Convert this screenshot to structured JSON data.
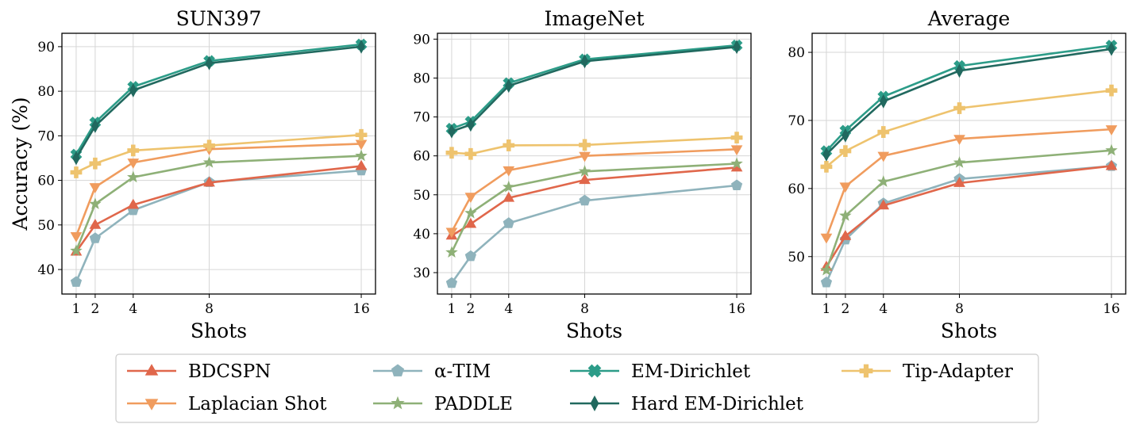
{
  "chart_data": [
    {
      "type": "line",
      "title": "SUN397",
      "xlabel": "Shots",
      "ylabel": "Accuracy (%)",
      "x": [
        1,
        2,
        4,
        8,
        16
      ],
      "xticks": [
        1,
        2,
        4,
        8,
        16
      ],
      "yticks": [
        40,
        50,
        60,
        70,
        80,
        90
      ],
      "ylim": [
        34.5,
        93
      ],
      "grid": true,
      "series": [
        {
          "name": "BDCSPN",
          "values": [
            44.0,
            50.0,
            54.5,
            59.5,
            63.2
          ]
        },
        {
          "name": "Laplacian Shot",
          "values": [
            47.5,
            58.5,
            64.0,
            67.0,
            68.2
          ]
        },
        {
          "name": "α-TIM",
          "values": [
            37.2,
            47.0,
            53.3,
            59.6,
            62.2
          ]
        },
        {
          "name": "PADDLE",
          "values": [
            44.2,
            54.7,
            60.7,
            64.0,
            65.5
          ]
        },
        {
          "name": "EM-Dirichlet",
          "values": [
            65.8,
            73.0,
            81.0,
            86.8,
            90.5
          ]
        },
        {
          "name": "Hard EM-Dirichlet",
          "values": [
            65.0,
            72.2,
            80.2,
            86.3,
            90.0
          ]
        },
        {
          "name": "Tip-Adapter",
          "values": [
            61.8,
            63.8,
            66.7,
            67.8,
            70.2
          ]
        }
      ]
    },
    {
      "type": "line",
      "title": "ImageNet",
      "xlabel": "Shots",
      "ylabel": "",
      "x": [
        1,
        2,
        4,
        8,
        16
      ],
      "xticks": [
        1,
        2,
        4,
        8,
        16
      ],
      "yticks": [
        30,
        40,
        50,
        60,
        70,
        80,
        90
      ],
      "ylim": [
        24.5,
        91.5
      ],
      "grid": true,
      "series": [
        {
          "name": "BDCSPN",
          "values": [
            39.5,
            42.5,
            49.2,
            53.8,
            57.0
          ]
        },
        {
          "name": "Laplacian Shot",
          "values": [
            40.5,
            49.5,
            56.3,
            60.0,
            61.7
          ]
        },
        {
          "name": "α-TIM",
          "values": [
            27.3,
            34.2,
            42.7,
            48.5,
            52.4
          ]
        },
        {
          "name": "PADDLE",
          "values": [
            35.2,
            45.3,
            52.0,
            56.0,
            58.0
          ]
        },
        {
          "name": "EM-Dirichlet",
          "values": [
            67.0,
            68.8,
            78.7,
            84.8,
            88.4
          ]
        },
        {
          "name": "Hard EM-Dirichlet",
          "values": [
            66.3,
            68.0,
            78.0,
            84.3,
            88.0
          ]
        },
        {
          "name": "Tip-Adapter",
          "values": [
            60.8,
            60.5,
            62.7,
            62.8,
            64.7
          ]
        }
      ]
    },
    {
      "type": "line",
      "title": "Average",
      "xlabel": "Shots",
      "ylabel": "",
      "x": [
        1,
        2,
        4,
        8,
        16
      ],
      "xticks": [
        1,
        2,
        4,
        8,
        16
      ],
      "yticks": [
        50,
        60,
        70,
        80
      ],
      "ylim": [
        44.5,
        82.8
      ],
      "grid": true,
      "series": [
        {
          "name": "BDCSPN",
          "values": [
            48.5,
            53.0,
            57.5,
            60.8,
            63.3
          ]
        },
        {
          "name": "Laplacian Shot",
          "values": [
            52.8,
            60.3,
            64.8,
            67.3,
            68.7
          ]
        },
        {
          "name": "α-TIM",
          "values": [
            46.2,
            52.5,
            57.8,
            61.4,
            63.3
          ]
        },
        {
          "name": "PADDLE",
          "values": [
            48.0,
            56.0,
            61.0,
            63.8,
            65.6
          ]
        },
        {
          "name": "EM-Dirichlet",
          "values": [
            65.5,
            68.5,
            73.5,
            78.0,
            81.0
          ]
        },
        {
          "name": "Hard EM-Dirichlet",
          "values": [
            65.0,
            67.8,
            72.8,
            77.3,
            80.5
          ]
        },
        {
          "name": "Tip-Adapter",
          "values": [
            63.2,
            65.5,
            68.3,
            71.8,
            74.4
          ]
        }
      ]
    }
  ],
  "legend": {
    "placement": "bottom",
    "entries": [
      {
        "name": "BDCSPN",
        "color": "#e0674b",
        "marker": "triangle-up"
      },
      {
        "name": "α-TIM",
        "color": "#8fb3bc",
        "marker": "pentagon"
      },
      {
        "name": "EM-Dirichlet",
        "color": "#2c9c88",
        "marker": "x-filled"
      },
      {
        "name": "Tip-Adapter",
        "color": "#eec36e",
        "marker": "plus-filled"
      },
      {
        "name": "Laplacian Shot",
        "color": "#f09c5e",
        "marker": "triangle-down"
      },
      {
        "name": "PADDLE",
        "color": "#8eb077",
        "marker": "star"
      },
      {
        "name": "Hard EM-Dirichlet",
        "color": "#21695f",
        "marker": "thin-diamond"
      }
    ]
  },
  "series_style": {
    "BDCSPN": {
      "color": "#e0674b",
      "marker": "triangle-up"
    },
    "Laplacian Shot": {
      "color": "#f09c5e",
      "marker": "triangle-down"
    },
    "α-TIM": {
      "color": "#8fb3bc",
      "marker": "pentagon"
    },
    "PADDLE": {
      "color": "#8eb077",
      "marker": "star"
    },
    "EM-Dirichlet": {
      "color": "#2c9c88",
      "marker": "x-filled"
    },
    "Hard EM-Dirichlet": {
      "color": "#21695f",
      "marker": "thin-diamond"
    },
    "Tip-Adapter": {
      "color": "#eec36e",
      "marker": "plus-filled"
    }
  }
}
